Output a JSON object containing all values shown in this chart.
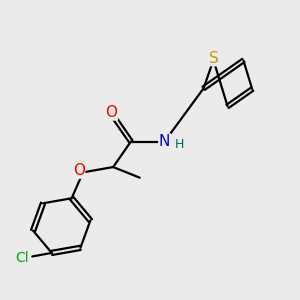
{
  "background_color": "#ebebeb",
  "atom_colors": {
    "S": "#b8a000",
    "N": "#0000cc",
    "O": "#ff0000",
    "Cl": "#00aa00",
    "H": "#006060",
    "C": "#000000"
  },
  "bond_color": "#000000",
  "bond_width": 1.6,
  "figsize": [
    3.0,
    3.0
  ],
  "dpi": 100
}
